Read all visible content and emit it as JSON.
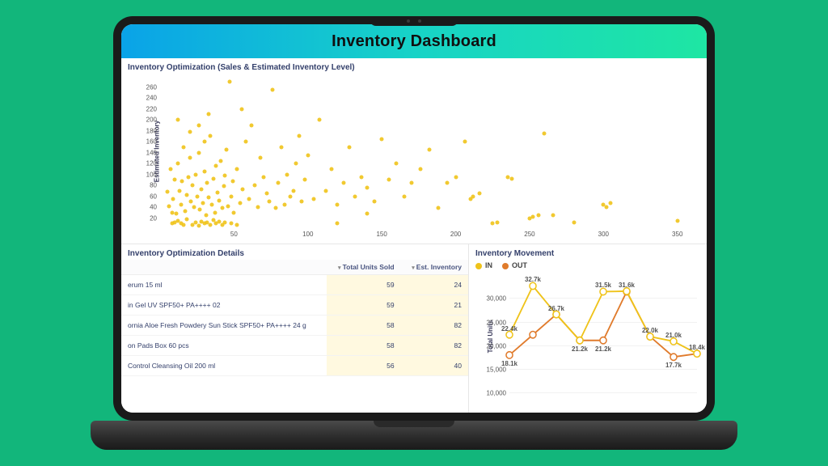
{
  "page_bg": "#12b67b",
  "header": {
    "title": "Inventory Dashboard",
    "gradient": [
      "#0aa3e8",
      "#17d3c7",
      "#1ee6a3"
    ],
    "title_color": "#101010",
    "title_fontsize": 20
  },
  "scatter": {
    "title": "Inventory Optimization (Sales & Estimated Inventory Level)",
    "type": "scatter",
    "y_label": "Estimated Inventory",
    "marker_color": "#efc31a",
    "marker_size": 5,
    "xlim": [
      0,
      360
    ],
    "ylim": [
      0,
      280
    ],
    "x_ticks": [
      50,
      100,
      150,
      200,
      250,
      300,
      350
    ],
    "y_ticks": [
      20,
      40,
      60,
      80,
      100,
      120,
      140,
      160,
      180,
      200,
      220,
      240,
      260
    ],
    "points": [
      [
        5,
        68
      ],
      [
        6,
        42
      ],
      [
        7,
        110
      ],
      [
        8,
        30
      ],
      [
        9,
        55
      ],
      [
        10,
        90
      ],
      [
        11,
        28
      ],
      [
        12,
        120
      ],
      [
        13,
        70
      ],
      [
        14,
        45
      ],
      [
        15,
        88
      ],
      [
        16,
        150
      ],
      [
        17,
        33
      ],
      [
        18,
        62
      ],
      [
        19,
        95
      ],
      [
        20,
        130
      ],
      [
        21,
        50
      ],
      [
        22,
        80
      ],
      [
        23,
        40
      ],
      [
        24,
        100
      ],
      [
        25,
        60
      ],
      [
        26,
        140
      ],
      [
        27,
        35
      ],
      [
        28,
        72
      ],
      [
        29,
        48
      ],
      [
        30,
        105
      ],
      [
        31,
        25
      ],
      [
        32,
        84
      ],
      [
        33,
        58
      ],
      [
        34,
        170
      ],
      [
        35,
        45
      ],
      [
        36,
        92
      ],
      [
        37,
        30
      ],
      [
        38,
        115
      ],
      [
        39,
        66
      ],
      [
        40,
        52
      ],
      [
        41,
        125
      ],
      [
        42,
        38
      ],
      [
        43,
        78
      ],
      [
        44,
        98
      ],
      [
        45,
        145
      ],
      [
        46,
        42
      ],
      [
        47,
        270
      ],
      [
        48,
        60
      ],
      [
        49,
        88
      ],
      [
        50,
        30
      ],
      [
        52,
        110
      ],
      [
        54,
        48
      ],
      [
        56,
        72
      ],
      [
        58,
        160
      ],
      [
        60,
        55
      ],
      [
        62,
        190
      ],
      [
        64,
        80
      ],
      [
        66,
        40
      ],
      [
        68,
        130
      ],
      [
        70,
        95
      ],
      [
        72,
        65
      ],
      [
        74,
        50
      ],
      [
        76,
        255
      ],
      [
        78,
        38
      ],
      [
        80,
        85
      ],
      [
        82,
        150
      ],
      [
        84,
        45
      ],
      [
        86,
        100
      ],
      [
        88,
        60
      ],
      [
        90,
        70
      ],
      [
        92,
        120
      ],
      [
        94,
        170
      ],
      [
        96,
        50
      ],
      [
        98,
        90
      ],
      [
        100,
        135
      ],
      [
        104,
        55
      ],
      [
        108,
        200
      ],
      [
        112,
        70
      ],
      [
        116,
        110
      ],
      [
        120,
        45
      ],
      [
        124,
        85
      ],
      [
        128,
        150
      ],
      [
        132,
        60
      ],
      [
        136,
        95
      ],
      [
        140,
        75
      ],
      [
        145,
        50
      ],
      [
        150,
        165
      ],
      [
        155,
        90
      ],
      [
        160,
        120
      ],
      [
        165,
        60
      ],
      [
        170,
        85
      ],
      [
        176,
        110
      ],
      [
        182,
        145
      ],
      [
        188,
        38
      ],
      [
        194,
        85
      ],
      [
        200,
        95
      ],
      [
        206,
        160
      ],
      [
        210,
        55
      ],
      [
        212,
        60
      ],
      [
        216,
        65
      ],
      [
        225,
        10
      ],
      [
        228,
        12
      ],
      [
        235,
        95
      ],
      [
        238,
        92
      ],
      [
        250,
        20
      ],
      [
        252,
        22
      ],
      [
        256,
        25
      ],
      [
        260,
        175
      ],
      [
        266,
        25
      ],
      [
        280,
        12
      ],
      [
        300,
        45
      ],
      [
        302,
        40
      ],
      [
        305,
        48
      ],
      [
        350,
        15
      ],
      [
        8,
        10
      ],
      [
        10,
        12
      ],
      [
        12,
        15
      ],
      [
        14,
        10
      ],
      [
        16,
        8
      ],
      [
        18,
        18
      ],
      [
        22,
        8
      ],
      [
        24,
        12
      ],
      [
        26,
        6
      ],
      [
        28,
        14
      ],
      [
        30,
        10
      ],
      [
        32,
        12
      ],
      [
        34,
        8
      ],
      [
        36,
        16
      ],
      [
        38,
        10
      ],
      [
        40,
        14
      ],
      [
        42,
        8
      ],
      [
        44,
        12
      ],
      [
        48,
        10
      ],
      [
        52,
        8
      ],
      [
        12,
        200
      ],
      [
        20,
        178
      ],
      [
        33,
        210
      ],
      [
        55,
        220
      ],
      [
        30,
        160
      ],
      [
        26,
        190
      ],
      [
        120,
        10
      ],
      [
        140,
        28
      ]
    ]
  },
  "details": {
    "title": "Inventory Optimization Details",
    "type": "table",
    "highlight_color": "#fff9e0",
    "columns": [
      {
        "label": "",
        "align": "left"
      },
      {
        "label": "Total Units Sold",
        "align": "right",
        "sortable": true
      },
      {
        "label": "Est. Inventory",
        "align": "right",
        "sortable": true
      }
    ],
    "rows": [
      {
        "name": "erum 15 ml",
        "sold": 59,
        "inv": 24
      },
      {
        "name": "in Gel UV SPF50+ PA++++ 02",
        "sold": 59,
        "inv": 21
      },
      {
        "name": "ornia Aloe Fresh Powdery Sun Stick SPF50+ PA++++ 24 g",
        "sold": 58,
        "inv": 82
      },
      {
        "name": "on Pads Box 60 pcs",
        "sold": 58,
        "inv": 82
      },
      {
        "name": "Control Cleansing Oil 200 ml",
        "sold": 56,
        "inv": 40
      }
    ]
  },
  "movement": {
    "title": "Inventory Movement",
    "type": "line",
    "y_label": "Total Units",
    "legend": [
      {
        "label": "IN",
        "color": "#efc31a"
      },
      {
        "label": "OUT",
        "color": "#e07b2c"
      }
    ],
    "ylim": [
      8000,
      35000
    ],
    "y_ticks": [
      10000,
      15000,
      20000,
      25000,
      30000
    ],
    "y_tick_labels": [
      "10,000",
      "15,000",
      "20,000",
      "25,000",
      "30,000"
    ],
    "gridlines": [
      10000,
      15000,
      20000,
      25000,
      30000
    ],
    "marker_size": 4,
    "line_width": 1.8,
    "series": {
      "in": [
        22400,
        32700,
        26700,
        21200,
        31500,
        31600,
        22000,
        21000,
        18400
      ],
      "out": [
        18100,
        22400,
        26700,
        21200,
        21200,
        31500,
        22000,
        17700,
        18400
      ]
    },
    "value_labels": {
      "in": [
        "22.4k",
        "32.7k",
        "26.7k",
        "",
        "31.5k",
        "31.6k",
        "22.0k",
        "21.0k",
        "18.4k"
      ],
      "out": [
        "18.1k",
        "",
        "",
        "21.2k",
        "21.2k",
        "",
        "",
        "17.7k",
        ""
      ]
    }
  }
}
